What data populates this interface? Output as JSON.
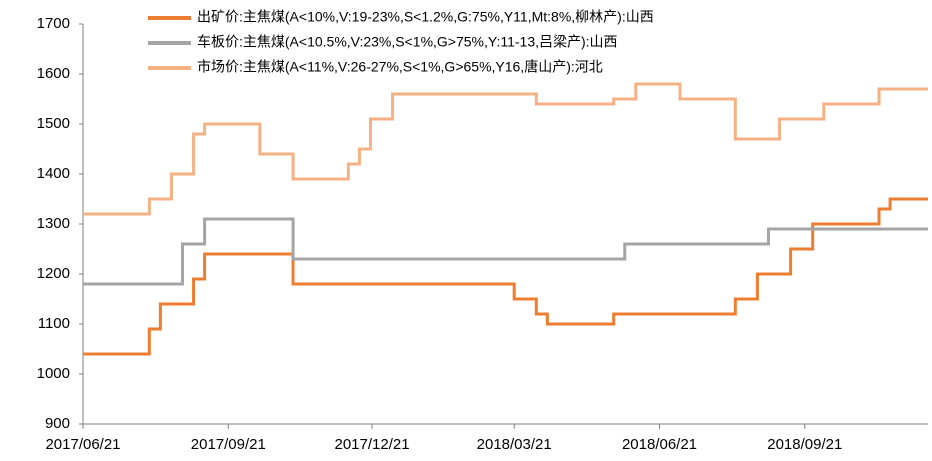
{
  "chart_data": {
    "type": "line",
    "step": "post",
    "x": [
      "2017/06/21",
      "2017/06/28",
      "2017/07/05",
      "2017/07/12",
      "2017/07/19",
      "2017/07/26",
      "2017/08/02",
      "2017/08/09",
      "2017/08/16",
      "2017/08/23",
      "2017/08/30",
      "2017/09/06",
      "2017/09/13",
      "2017/09/20",
      "2017/09/27",
      "2017/10/04",
      "2017/10/11",
      "2017/10/18",
      "2017/10/25",
      "2017/11/01",
      "2017/11/08",
      "2017/11/15",
      "2017/11/22",
      "2017/11/29",
      "2017/12/06",
      "2017/12/13",
      "2017/12/20",
      "2017/12/27",
      "2018/01/03",
      "2018/01/10",
      "2018/01/17",
      "2018/01/24",
      "2018/01/31",
      "2018/02/07",
      "2018/02/14",
      "2018/02/21",
      "2018/02/28",
      "2018/03/07",
      "2018/03/14",
      "2018/03/21",
      "2018/03/28",
      "2018/04/04",
      "2018/04/11",
      "2018/04/18",
      "2018/04/25",
      "2018/05/02",
      "2018/05/09",
      "2018/05/16",
      "2018/05/23",
      "2018/05/30",
      "2018/06/06",
      "2018/06/13",
      "2018/06/20",
      "2018/06/27",
      "2018/07/04",
      "2018/07/11",
      "2018/07/18",
      "2018/07/25",
      "2018/08/01",
      "2018/08/08",
      "2018/08/15",
      "2018/08/22",
      "2018/08/29",
      "2018/09/05",
      "2018/09/12",
      "2018/09/19",
      "2018/09/26",
      "2018/10/03",
      "2018/10/10",
      "2018/10/17",
      "2018/10/24",
      "2018/10/31",
      "2018/11/07",
      "2018/11/14",
      "2018/11/21",
      "2018/11/28",
      "2018/12/05"
    ],
    "series": [
      {
        "name": "出矿价:主焦煤(A<10%,V:19-23%,S<1.2%,G:75%,Y11,Mt:8%,柳林产):山西",
        "color": "#ED7D31",
        "values": [
          1040,
          1040,
          1040,
          1040,
          1040,
          1040,
          1090,
          1140,
          1140,
          1140,
          1190,
          1240,
          1240,
          1240,
          1240,
          1240,
          1240,
          1240,
          1240,
          1180,
          1180,
          1180,
          1180,
          1180,
          1180,
          1180,
          1180,
          1180,
          1180,
          1180,
          1180,
          1180,
          1180,
          1180,
          1180,
          1180,
          1180,
          1180,
          1180,
          1150,
          1150,
          1120,
          1100,
          1100,
          1100,
          1100,
          1100,
          1100,
          1120,
          1120,
          1120,
          1120,
          1120,
          1120,
          1120,
          1120,
          1120,
          1120,
          1120,
          1150,
          1150,
          1200,
          1200,
          1200,
          1250,
          1250,
          1300,
          1300,
          1300,
          1300,
          1300,
          1300,
          1330,
          1350,
          1350,
          1350,
          1350
        ]
      },
      {
        "name": "车板价:主焦煤(A<10.5%,V:23%,S<1%,G>75%,Y:11-13,吕梁产):山西",
        "color": "#A5A5A5",
        "values": [
          1180,
          1180,
          1180,
          1180,
          1180,
          1180,
          1180,
          1180,
          1180,
          1260,
          1260,
          1310,
          1310,
          1310,
          1310,
          1310,
          1310,
          1310,
          1310,
          1230,
          1230,
          1230,
          1230,
          1230,
          1230,
          1230,
          1230,
          1230,
          1230,
          1230,
          1230,
          1230,
          1230,
          1230,
          1230,
          1230,
          1230,
          1230,
          1230,
          1230,
          1230,
          1230,
          1230,
          1230,
          1230,
          1230,
          1230,
          1230,
          1230,
          1260,
          1260,
          1260,
          1260,
          1260,
          1260,
          1260,
          1260,
          1260,
          1260,
          1260,
          1260,
          1260,
          1290,
          1290,
          1290,
          1290,
          1290,
          1290,
          1290,
          1290,
          1290,
          1290,
          1290,
          1290,
          1290,
          1290,
          1290
        ]
      },
      {
        "name": "市场价:主焦煤(A<11%,V:26-27%,S<1%,G>65%,Y16,唐山产):河北",
        "color": "#F4B183",
        "values": [
          1320,
          1320,
          1320,
          1320,
          1320,
          1320,
          1350,
          1350,
          1400,
          1400,
          1480,
          1500,
          1500,
          1500,
          1500,
          1500,
          1440,
          1440,
          1440,
          1390,
          1390,
          1390,
          1390,
          1390,
          1420,
          1450,
          1510,
          1510,
          1560,
          1560,
          1560,
          1560,
          1560,
          1560,
          1560,
          1560,
          1560,
          1560,
          1560,
          1560,
          1560,
          1540,
          1540,
          1540,
          1540,
          1540,
          1540,
          1540,
          1550,
          1550,
          1580,
          1580,
          1580,
          1580,
          1550,
          1550,
          1550,
          1550,
          1550,
          1470,
          1470,
          1470,
          1470,
          1510,
          1510,
          1510,
          1510,
          1540,
          1540,
          1540,
          1540,
          1540,
          1570,
          1570,
          1570,
          1570,
          1570
        ]
      }
    ],
    "xlim": [
      "2017/06/21",
      "2018/12/08"
    ],
    "xticks": [
      "2017/06/21",
      "2017/09/21",
      "2017/12/21",
      "2018/03/21",
      "2018/06/21",
      "2018/09/21"
    ],
    "ylim": [
      900,
      1700
    ],
    "yticks": [
      900,
      1000,
      1100,
      1200,
      1300,
      1400,
      1500,
      1600,
      1700
    ],
    "grid": false,
    "legend": "top"
  }
}
